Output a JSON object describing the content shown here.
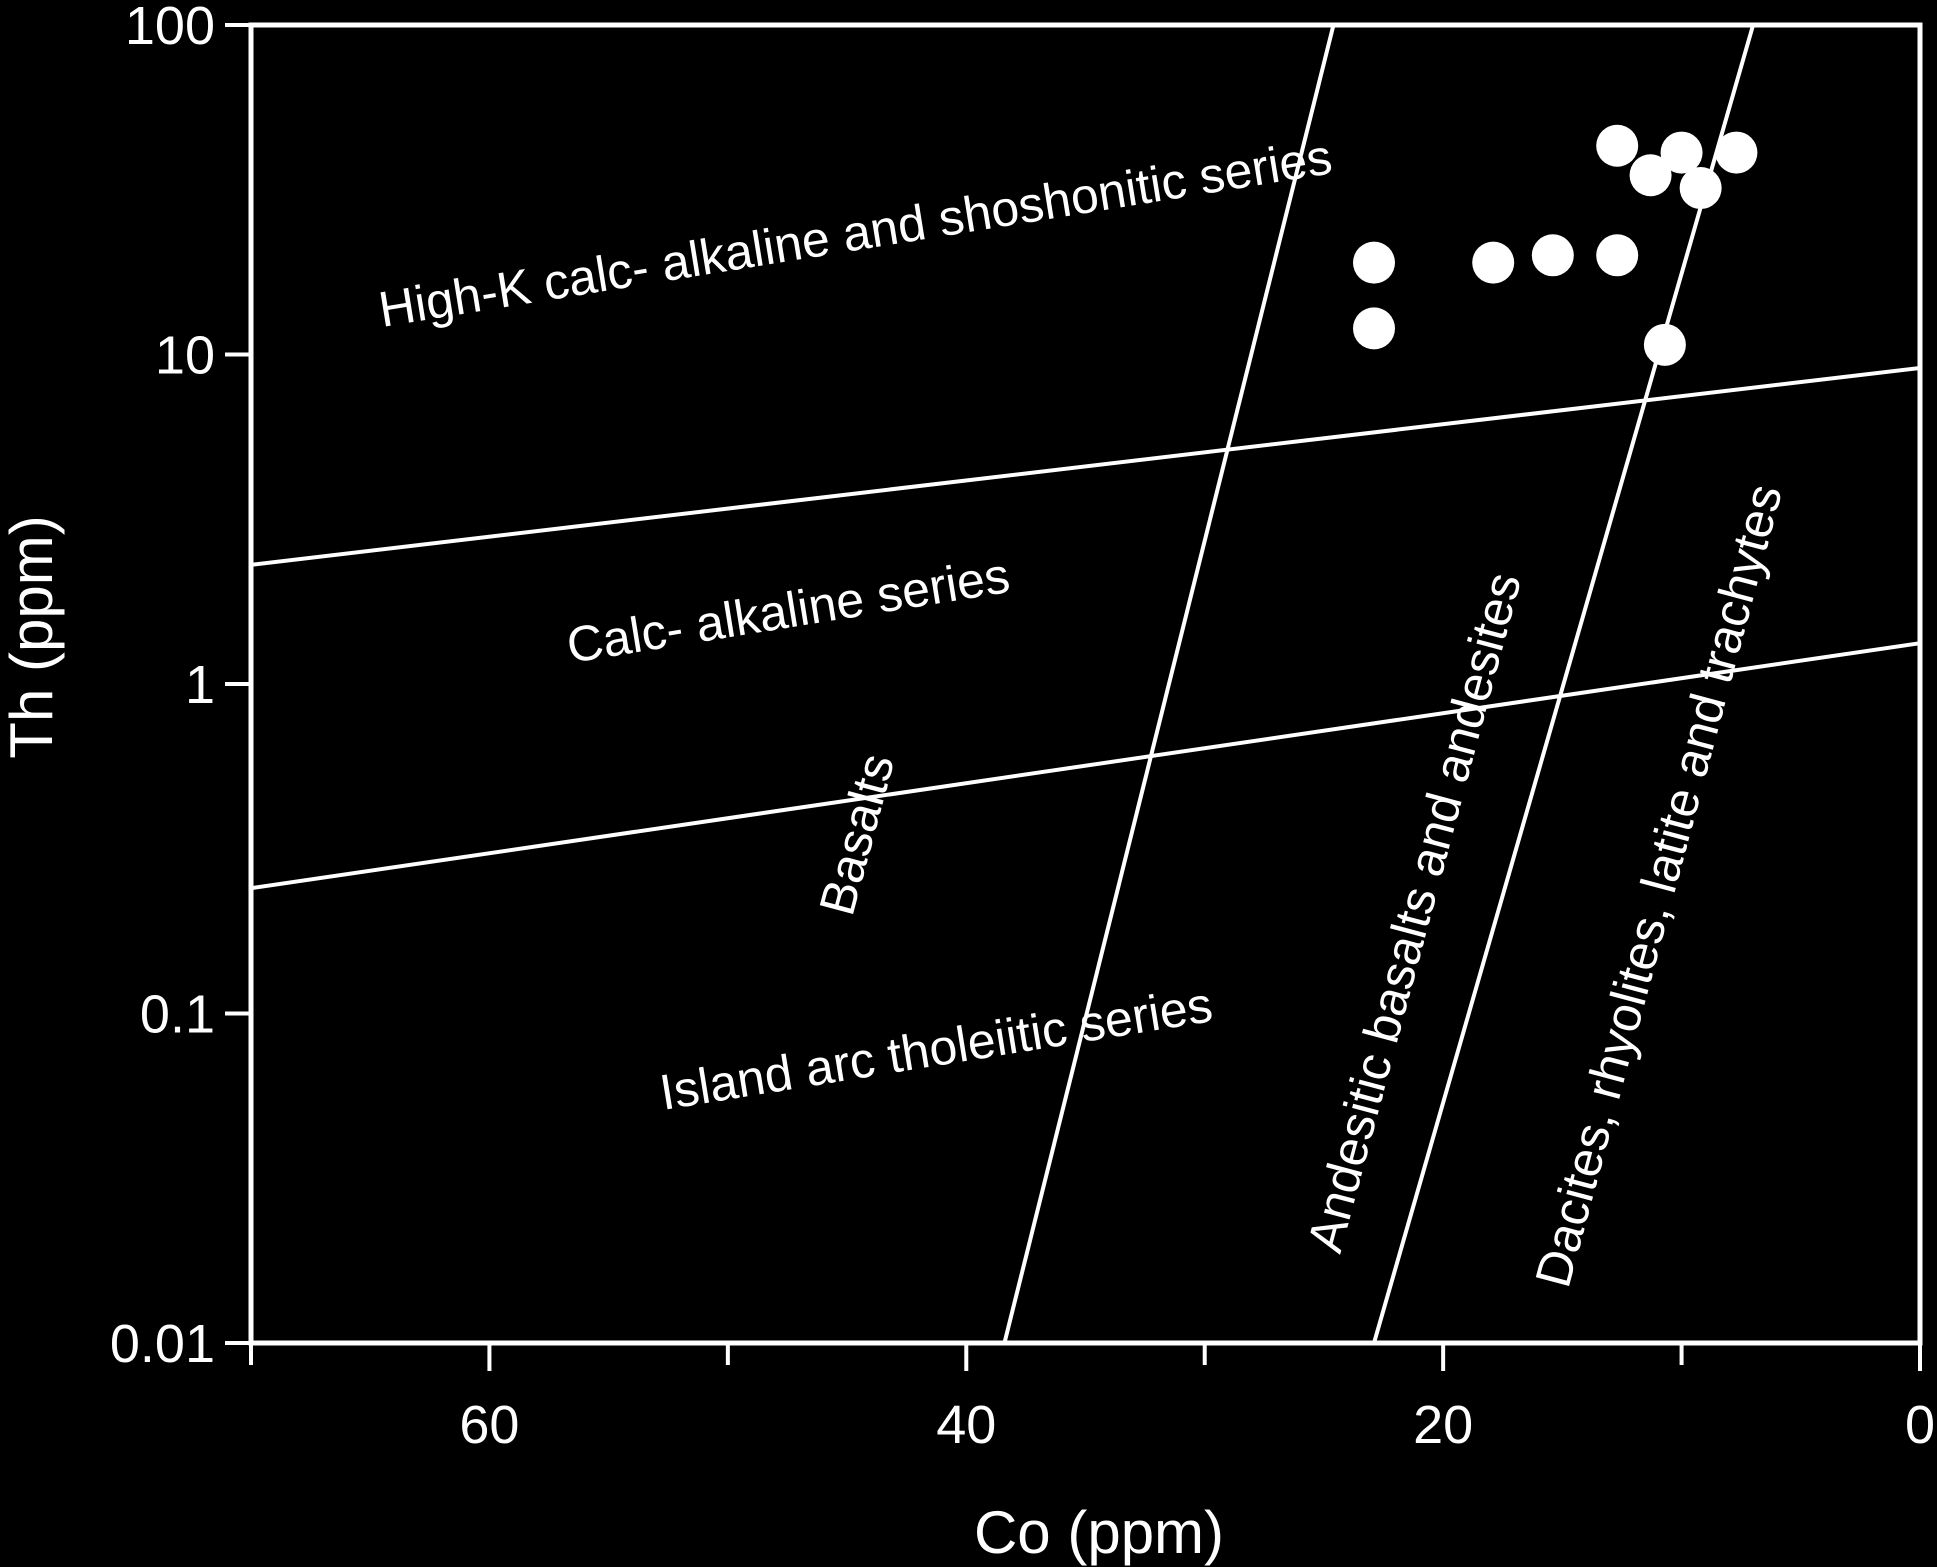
{
  "chart_data": {
    "type": "scatter",
    "title": "",
    "xlabel": "Co (ppm)",
    "ylabel": "Th (ppm)",
    "x_reversed": true,
    "xlim": [
      70,
      0
    ],
    "x_ticks": [
      60,
      40,
      20,
      0
    ],
    "x_tick_labels": [
      "60",
      "40",
      "20",
      "0"
    ],
    "y_scale": "log",
    "ylim": [
      0.01,
      100
    ],
    "y_ticks": [
      100,
      10,
      1,
      0.1,
      0.01
    ],
    "y_tick_labels": [
      "100",
      "10",
      "1",
      "0.1",
      "0.01"
    ],
    "grid": false,
    "colors": {
      "background": "#000000",
      "foreground": "#ffffff"
    },
    "points": [
      {
        "x": 22.9,
        "y": 19
      },
      {
        "x": 22.9,
        "y": 12
      },
      {
        "x": 17.9,
        "y": 19
      },
      {
        "x": 15.4,
        "y": 20
      },
      {
        "x": 12.7,
        "y": 20
      },
      {
        "x": 12.7,
        "y": 43
      },
      {
        "x": 11.3,
        "y": 35
      },
      {
        "x": 10.0,
        "y": 41
      },
      {
        "x": 9.2,
        "y": 32
      },
      {
        "x": 7.7,
        "y": 41
      },
      {
        "x": 10.7,
        "y": 10.7
      }
    ],
    "boundary_lines": [
      {
        "name": "series-boundary-upper",
        "from": {
          "x": 70,
          "y": 2.3
        },
        "to": {
          "x": 0,
          "y": 9.1
        }
      },
      {
        "name": "series-boundary-lower",
        "from": {
          "x": 70,
          "y": 0.24
        },
        "to": {
          "x": 0,
          "y": 1.33
        }
      },
      {
        "name": "rock-boundary-left",
        "from": {
          "x": 38.4,
          "y": 0.01
        },
        "to": {
          "x": 24.6,
          "y": 100
        }
      },
      {
        "name": "rock-boundary-right",
        "from": {
          "x": 22.9,
          "y": 0.01
        },
        "to": {
          "x": 7.0,
          "y": 100
        }
      }
    ],
    "region_labels": [
      {
        "id": "high-k",
        "text": "High-K calc- alkaline and shoshonitic series"
      },
      {
        "id": "calc-alkaline",
        "text": "Calc- alkaline series"
      },
      {
        "id": "basalts",
        "text": "Basalts"
      },
      {
        "id": "island-arc",
        "text": "Island arc tholeiitic series"
      },
      {
        "id": "andesitic",
        "text": "Andesitic basalts and andesites"
      },
      {
        "id": "dacites",
        "text": "Dacites, rhyolites, latite and trachytes"
      }
    ]
  }
}
